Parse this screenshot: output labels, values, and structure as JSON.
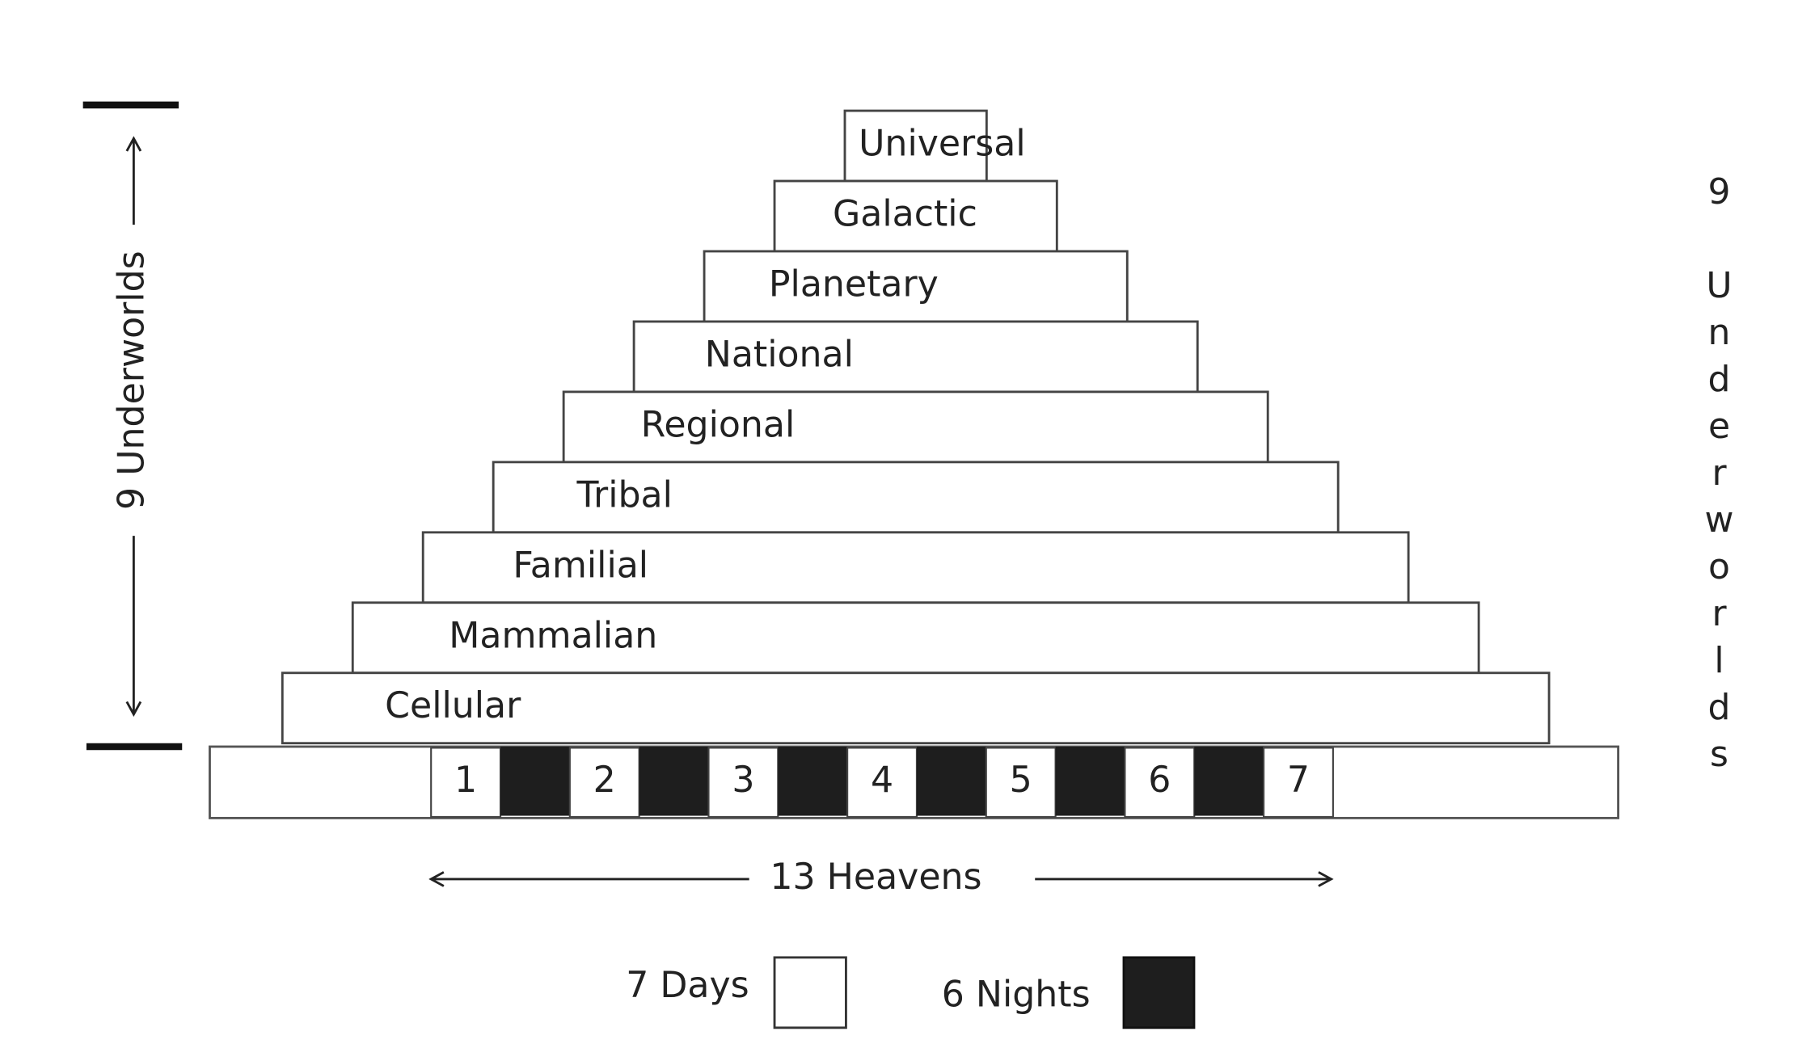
{
  "levels": [
    "Universal",
    "Galactic",
    "Planetary",
    "National",
    "Regional",
    "Tribal",
    "Familial",
    "Mammalian",
    "Cellular"
  ],
  "days": [
    1,
    2,
    3,
    4,
    5,
    6,
    7
  ],
  "left_label": "9 Underworlds",
  "right_label": "9 Underworlds",
  "bottom_label": "13 Heavens",
  "legend": {
    "days": "7 Days",
    "nights": "6 Nights"
  }
}
